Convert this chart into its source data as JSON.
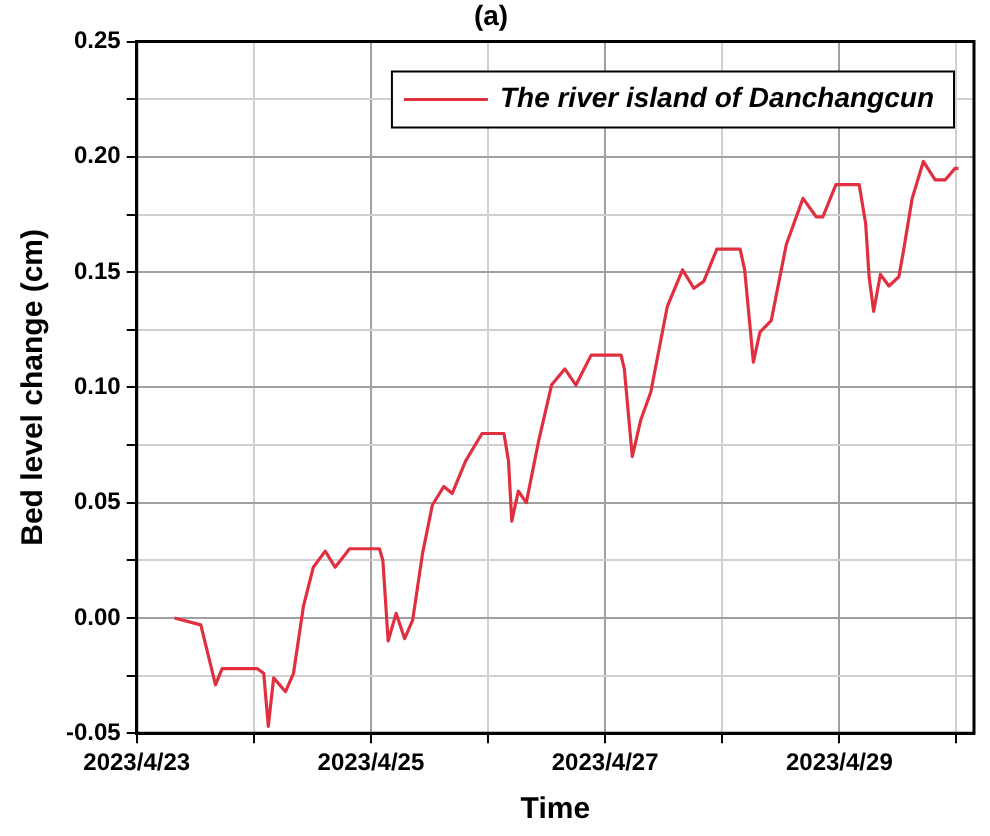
{
  "chart_data": {
    "type": "line",
    "title": "(a)",
    "xlabel": "Time",
    "ylabel": "Bed level change (cm)",
    "xlim": [
      "2023-04-23",
      "2023-04-30T03:36"
    ],
    "xticks": [
      {
        "value": "2023-04-23",
        "label": "2023/4/23"
      },
      {
        "value": "2023-04-24",
        "label": null
      },
      {
        "value": "2023-04-25",
        "label": "2023/4/25"
      },
      {
        "value": "2023-04-26",
        "label": null
      },
      {
        "value": "2023-04-27",
        "label": "2023/4/27"
      },
      {
        "value": "2023-04-28",
        "label": null
      },
      {
        "value": "2023-04-29",
        "label": "2023/4/29"
      },
      {
        "value": "2023-04-30",
        "label": null
      }
    ],
    "ylim": [
      -0.05,
      0.25
    ],
    "yticks": [
      {
        "value": -0.05,
        "label": "-0.05"
      },
      {
        "value": -0.025,
        "label": null
      },
      {
        "value": 0,
        "label": "0.00"
      },
      {
        "value": 0.025,
        "label": null
      },
      {
        "value": 0.05,
        "label": "0.05"
      },
      {
        "value": 0.075,
        "label": null
      },
      {
        "value": 0.1,
        "label": "0.10"
      },
      {
        "value": 0.125,
        "label": null
      },
      {
        "value": 0.15,
        "label": "0.15"
      },
      {
        "value": 0.175,
        "label": null
      },
      {
        "value": 0.2,
        "label": "0.20"
      },
      {
        "value": 0.225,
        "label": null
      },
      {
        "value": 0.25,
        "label": "0.25"
      }
    ],
    "grid": true,
    "legend": "top right",
    "marker": "none",
    "line_style": "solid",
    "series": [
      {
        "name": "The river island of Danchangcun",
        "color": "#e03040",
        "x": [
          "2023-04-23T07:44",
          "2023-04-23T13:08",
          "2023-04-23T16:09",
          "2023-04-23T17:30",
          "2023-04-24T00:41",
          "2023-04-24T02:02",
          "2023-04-24T02:58",
          "2023-04-24T04:04",
          "2023-04-24T06:30",
          "2023-04-24T08:08",
          "2023-04-24T10:10",
          "2023-04-24T12:12",
          "2023-04-24T14:38",
          "2023-04-24T16:40",
          "2023-04-24T19:38",
          "2023-04-25T01:45",
          "2023-04-25T02:27",
          "2023-04-25T03:32",
          "2023-04-25T05:10",
          "2023-04-25T06:55",
          "2023-04-25T08:33",
          "2023-04-25T10:35",
          "2023-04-25T12:36",
          "2023-04-25T14:56",
          "2023-04-25T16:40",
          "2023-04-25T19:24",
          "2023-04-25T22:46",
          "2023-04-26T03:16",
          "2023-04-26T04:12",
          "2023-04-26T04:52",
          "2023-04-26T06:13",
          "2023-04-26T07:51",
          "2023-04-26T10:18",
          "2023-04-26T13:01",
          "2023-04-26T15:44",
          "2023-04-26T18:01",
          "2023-04-26T21:08",
          "2023-04-27T03:16",
          "2023-04-27T03:56",
          "2023-04-27T05:34",
          "2023-04-27T07:19",
          "2023-04-27T09:22",
          "2023-04-27T12:44",
          "2023-04-27T15:52",
          "2023-04-27T18:11",
          "2023-04-27T20:13",
          "2023-04-27T22:54",
          "2023-04-28T03:40",
          "2023-04-28T04:36",
          "2023-04-28T06:23",
          "2023-04-28T07:44",
          "2023-04-28T10:03",
          "2023-04-28T13:08",
          "2023-04-28T16:33",
          "2023-04-28T19:15",
          "2023-04-28T20:37",
          "2023-04-28T23:18",
          "2023-04-29T04:04",
          "2023-04-29T05:24",
          "2023-04-29T06:06",
          "2023-04-29T07:02",
          "2023-04-29T08:25",
          "2023-04-29T10:10",
          "2023-04-29T12:12",
          "2023-04-29T13:08",
          "2023-04-29T14:56",
          "2023-04-29T17:13",
          "2023-04-29T19:38",
          "2023-04-29T21:41",
          "2023-04-29T23:43",
          "2023-04-30T00:25"
        ],
        "values": [
          0,
          -0.003,
          -0.029,
          -0.022,
          -0.022,
          -0.024,
          -0.047,
          -0.026,
          -0.032,
          -0.024,
          0.005,
          0.022,
          0.029,
          0.022,
          0.03,
          0.03,
          0.025,
          -0.01,
          0.002,
          -0.009,
          -0.001,
          0.028,
          0.049,
          0.057,
          0.054,
          0.068,
          0.08,
          0.08,
          0.068,
          0.042,
          0.055,
          0.05,
          0.076,
          0.101,
          0.108,
          0.101,
          0.114,
          0.114,
          0.108,
          0.07,
          0.086,
          0.098,
          0.135,
          0.151,
          0.143,
          0.146,
          0.16,
          0.16,
          0.151,
          0.111,
          0.124,
          0.129,
          0.162,
          0.182,
          0.174,
          0.174,
          0.188,
          0.188,
          0.171,
          0.148,
          0.133,
          0.149,
          0.144,
          0.148,
          0.159,
          0.182,
          0.198,
          0.19,
          0.19,
          0.195,
          0.195
        ]
      }
    ]
  }
}
